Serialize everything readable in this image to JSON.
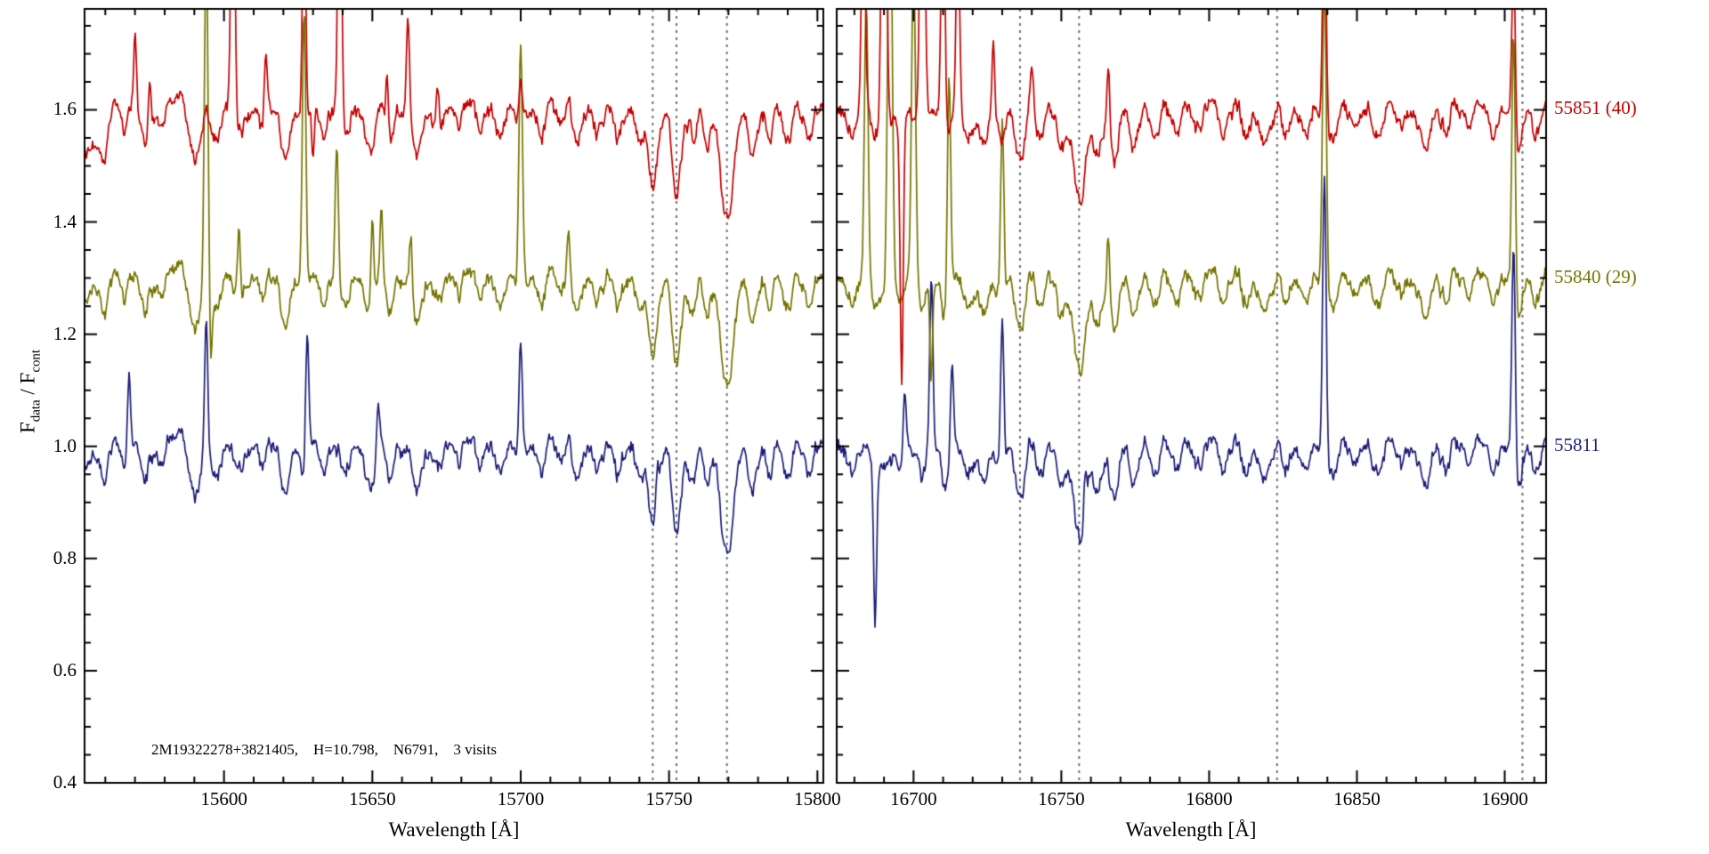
{
  "chart_data": {
    "type": "line",
    "title": "",
    "xlabel": "Wavelength [Å]",
    "ylabel": "F_data / F_cont",
    "ylabel_parts": {
      "p1": "F",
      "s1": "data",
      "p2": " / F",
      "s2": "cont"
    },
    "annotation": "2M19322278+3821405,    H=10.798,    N6791,    3 visits",
    "ylim": [
      0.4,
      1.78
    ],
    "yticks": [
      0.4,
      0.6,
      0.8,
      1.0,
      1.2,
      1.4,
      1.6
    ],
    "y_minor_step": 0.05,
    "grid": false,
    "legend_position": "right-outside",
    "dashed_line_color": "#6f6f6f",
    "axis_color": "#000000",
    "panels": [
      {
        "xlim": [
          15553,
          15802
        ],
        "xticks": [
          15600,
          15650,
          15700,
          15750,
          15800
        ],
        "x_minor_step": 10,
        "dashed_lines": [
          15744.5,
          15752.5,
          15769.5
        ],
        "absorption": [
          [
            15554,
            0.05,
            1.5
          ],
          [
            15560,
            0.05,
            1.3
          ],
          [
            15566,
            0.04,
            1.2
          ],
          [
            15573,
            0.05,
            1.3
          ],
          [
            15579,
            0.04,
            1.2
          ],
          [
            15590,
            0.1,
            1.8
          ],
          [
            15597,
            0.06,
            1.4
          ],
          [
            15605,
            0.04,
            1.2
          ],
          [
            15613,
            0.05,
            1.3
          ],
          [
            15621,
            0.11,
            1.6
          ],
          [
            15627,
            0.06,
            1.2
          ],
          [
            15633,
            0.05,
            1.3
          ],
          [
            15641,
            0.04,
            1.2
          ],
          [
            15649,
            0.07,
            1.5
          ],
          [
            15656,
            0.04,
            1.2
          ],
          [
            15665,
            0.06,
            1.4
          ],
          [
            15672,
            0.04,
            1.2
          ],
          [
            15679,
            0.04,
            1.2
          ],
          [
            15686,
            0.05,
            1.3
          ],
          [
            15693,
            0.04,
            1.2
          ],
          [
            15700,
            0.04,
            1.2
          ],
          [
            15707,
            0.05,
            1.3
          ],
          [
            15713,
            0.04,
            1.2
          ],
          [
            15719,
            0.05,
            1.3
          ],
          [
            15726,
            0.04,
            1.2
          ],
          [
            15733,
            0.05,
            1.3
          ],
          [
            15740,
            0.06,
            1.4
          ],
          [
            15744.5,
            0.12,
            1.5
          ],
          [
            15752.5,
            0.14,
            1.6
          ],
          [
            15758,
            0.05,
            1.2
          ],
          [
            15763,
            0.06,
            1.3
          ],
          [
            15769.5,
            0.2,
            2.2
          ],
          [
            15778,
            0.06,
            1.4
          ],
          [
            15784,
            0.04,
            1.2
          ],
          [
            15790,
            0.05,
            1.3
          ],
          [
            15797,
            0.04,
            1.2
          ]
        ]
      },
      {
        "xlim": [
          16674,
          16914
        ],
        "xticks": [
          16700,
          16750,
          16800,
          16850,
          16900
        ],
        "x_minor_step": 10,
        "dashed_lines": [
          16736,
          16756,
          16823,
          16906
        ],
        "absorption": [
          [
            16679,
            0.05,
            1.4
          ],
          [
            16687,
            0.05,
            1.4
          ],
          [
            16695,
            0.04,
            1.2
          ],
          [
            16703,
            0.05,
            1.3
          ],
          [
            16711,
            0.07,
            1.5
          ],
          [
            16718,
            0.05,
            1.3
          ],
          [
            16724,
            0.05,
            1.3
          ],
          [
            16730,
            0.06,
            1.4
          ],
          [
            16736,
            0.11,
            1.6
          ],
          [
            16743,
            0.05,
            1.3
          ],
          [
            16750,
            0.06,
            1.4
          ],
          [
            16756,
            0.17,
            1.8
          ],
          [
            16762,
            0.07,
            1.4
          ],
          [
            16768,
            0.09,
            1.5
          ],
          [
            16775,
            0.05,
            1.3
          ],
          [
            16782,
            0.04,
            1.2
          ],
          [
            16789,
            0.05,
            1.3
          ],
          [
            16796,
            0.04,
            1.2
          ],
          [
            16804,
            0.04,
            1.2
          ],
          [
            16812,
            0.04,
            1.2
          ],
          [
            16819,
            0.04,
            1.2
          ],
          [
            16826,
            0.05,
            1.3
          ],
          [
            16833,
            0.04,
            1.2
          ],
          [
            16841,
            0.05,
            1.3
          ],
          [
            16849,
            0.04,
            1.2
          ],
          [
            16857,
            0.04,
            1.2
          ],
          [
            16865,
            0.04,
            1.2
          ],
          [
            16873,
            0.06,
            1.4
          ],
          [
            16880,
            0.04,
            1.2
          ],
          [
            16888,
            0.05,
            1.3
          ],
          [
            16896,
            0.05,
            1.3
          ],
          [
            16904,
            0.08,
            1.5
          ],
          [
            16911,
            0.04,
            1.2
          ]
        ]
      }
    ],
    "series": [
      {
        "label": "55851 (40)",
        "color": "#c40000",
        "offset": 1.6,
        "spikes": [
          [
            [
              15556,
              -0.05,
              3.0
            ],
            [
              15570,
              0.13,
              0.5
            ],
            [
              15575,
              0.07,
              0.45
            ],
            [
              15603,
              0.65,
              0.6
            ],
            [
              15614,
              0.12,
              0.5
            ],
            [
              15627,
              0.5,
              0.55
            ],
            [
              15630,
              -0.1,
              0.4
            ],
            [
              15639,
              0.6,
              0.6
            ],
            [
              15655,
              0.1,
              0.45
            ],
            [
              15662,
              0.17,
              0.5
            ],
            [
              15672,
              0.08,
              0.45
            ],
            [
              15700,
              0.09,
              0.5
            ],
            [
              15757,
              0.05,
              0.4
            ]
          ],
          [
            [
              16683,
              0.45,
              0.6
            ],
            [
              16690,
              0.95,
              0.7
            ],
            [
              16696,
              -0.45,
              0.5
            ],
            [
              16703,
              0.85,
              0.7
            ],
            [
              16710,
              0.55,
              0.6
            ],
            [
              16715,
              0.35,
              0.55
            ],
            [
              16727,
              0.14,
              0.5
            ],
            [
              16740,
              0.08,
              0.45
            ],
            [
              16766,
              0.12,
              0.5
            ],
            [
              16839,
              0.4,
              0.6
            ],
            [
              16903,
              0.32,
              0.6
            ]
          ]
        ]
      },
      {
        "label": "55840 (29)",
        "color": "#757500",
        "offset": 1.3,
        "spikes": [
          [
            [
              15594,
              0.6,
              0.6
            ],
            [
              15595.5,
              -0.13,
              0.4
            ],
            [
              15605,
              0.12,
              0.5
            ],
            [
              15627,
              0.55,
              0.6
            ],
            [
              15638,
              0.25,
              0.5
            ],
            [
              15650,
              0.18,
              0.5
            ],
            [
              15653,
              0.12,
              0.45
            ],
            [
              15663,
              0.1,
              0.45
            ],
            [
              15700,
              0.45,
              0.6
            ],
            [
              15716,
              0.07,
              0.45
            ]
          ],
          [
            [
              16684,
              0.5,
              0.6
            ],
            [
              16692,
              0.85,
              0.7
            ],
            [
              16700,
              0.6,
              0.65
            ],
            [
              16706,
              -0.18,
              0.45
            ],
            [
              16712,
              0.4,
              0.55
            ],
            [
              16730,
              0.33,
              0.55
            ],
            [
              16766,
              0.12,
              0.5
            ],
            [
              16839,
              0.55,
              0.65
            ],
            [
              16903,
              0.5,
              0.6
            ]
          ]
        ]
      },
      {
        "label": "55811",
        "color": "#1e1e78",
        "offset": 1.0,
        "spikes": [
          [
            [
              15568,
              0.13,
              0.5
            ],
            [
              15594,
              0.22,
              0.55
            ],
            [
              15628,
              0.24,
              0.55
            ],
            [
              15652,
              0.08,
              0.45
            ],
            [
              15700,
              0.22,
              0.55
            ],
            [
              15746,
              0.05,
              0.4
            ]
          ],
          [
            [
              16687,
              -0.27,
              0.5
            ],
            [
              16697,
              0.12,
              0.5
            ],
            [
              16706,
              0.3,
              0.55
            ],
            [
              16713,
              0.17,
              0.5
            ],
            [
              16730,
              0.28,
              0.55
            ],
            [
              16758,
              0.06,
              0.4
            ],
            [
              16839,
              0.5,
              0.6
            ],
            [
              16903,
              0.42,
              0.6
            ]
          ]
        ]
      }
    ],
    "noise_amp": 0.012,
    "micro_amp": 0.022
  }
}
